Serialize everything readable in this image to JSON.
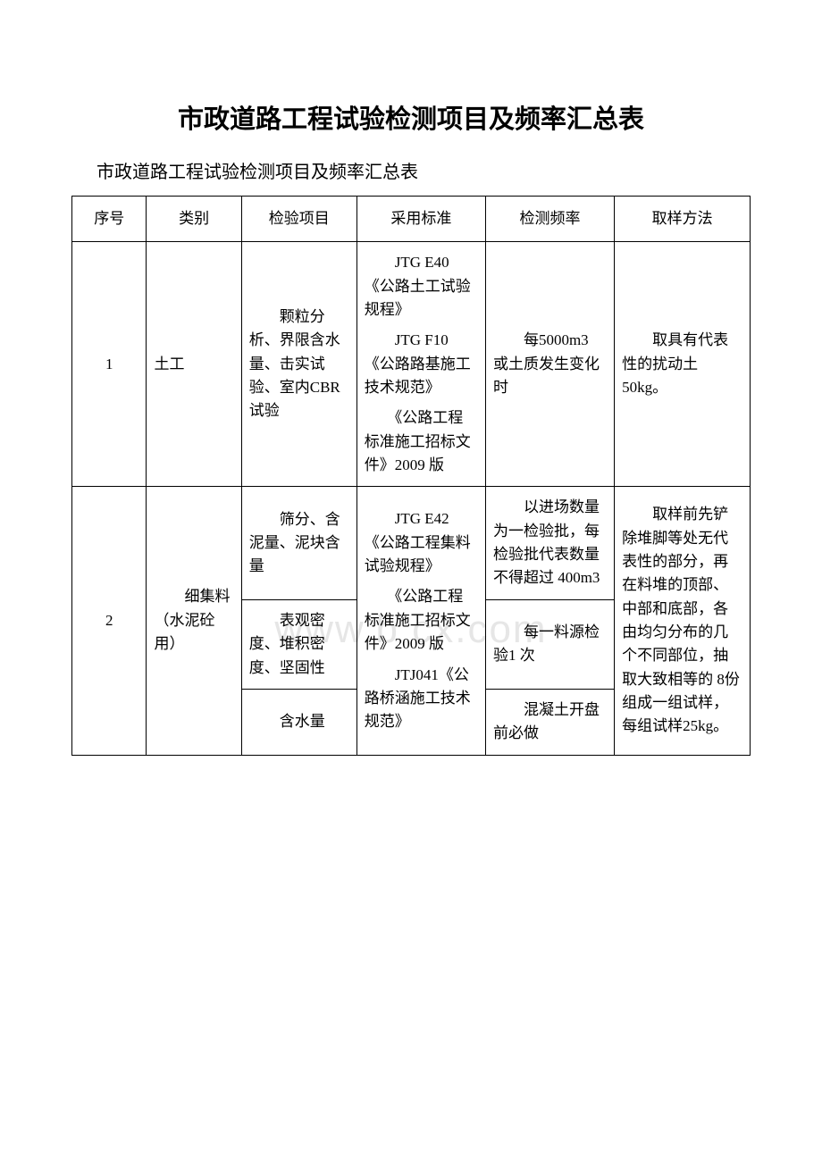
{
  "title": "市政道路工程试验检测项目及频率汇总表",
  "subtitle": "市政道路工程试验检测项目及频率汇总表",
  "watermark": "www.b    cx.com",
  "columns": {
    "seq": "序号",
    "category": "类别",
    "item": "检验项目",
    "standard": "采用标准",
    "frequency": "检测频率",
    "method": "取样方法"
  },
  "rows": {
    "r1": {
      "seq": "1",
      "category": "土工",
      "item": "　　颗粒分析、界限含水量、击实试验、室内CBR 试验",
      "standard_p1": "　　JTG E40《公路土工试验规程》",
      "standard_p2": "　　JTG F10《公路路基施工技术规范》",
      "standard_p3": "　　《公路工程标准施工招标文件》2009 版",
      "frequency": "　　每5000m3 或土质发生变化时",
      "method": "　　取具有代表性的扰动土50kg。"
    },
    "r2": {
      "seq": "2",
      "category": "　　细集料（水泥砼用）",
      "item1": "　　筛分、含泥量、泥块含量",
      "item2": "　　表观密度、堆积密度、坚固性",
      "item3": "　　含水量",
      "standard_p1": "　　JTG E42《公路工程集料试验规程》",
      "standard_p2": "　　《公路工程标准施工招标文件》2009 版",
      "standard_p3": "　　JTJ041《公路桥涵施工技术规范》",
      "freq1": "　　以进场数量为一检验批，每检验批代表数量不得超过 400m3",
      "freq2": "　　每一料源检验1 次",
      "freq3": "　　混凝土开盘前必做",
      "method": "　　取样前先铲除堆脚等处无代表性的部分，再在料堆的顶部、中部和底部，各由均匀分布的几个不同部位，抽取大致相等的 8份组成一组试样，每组试样25kg。"
    }
  }
}
